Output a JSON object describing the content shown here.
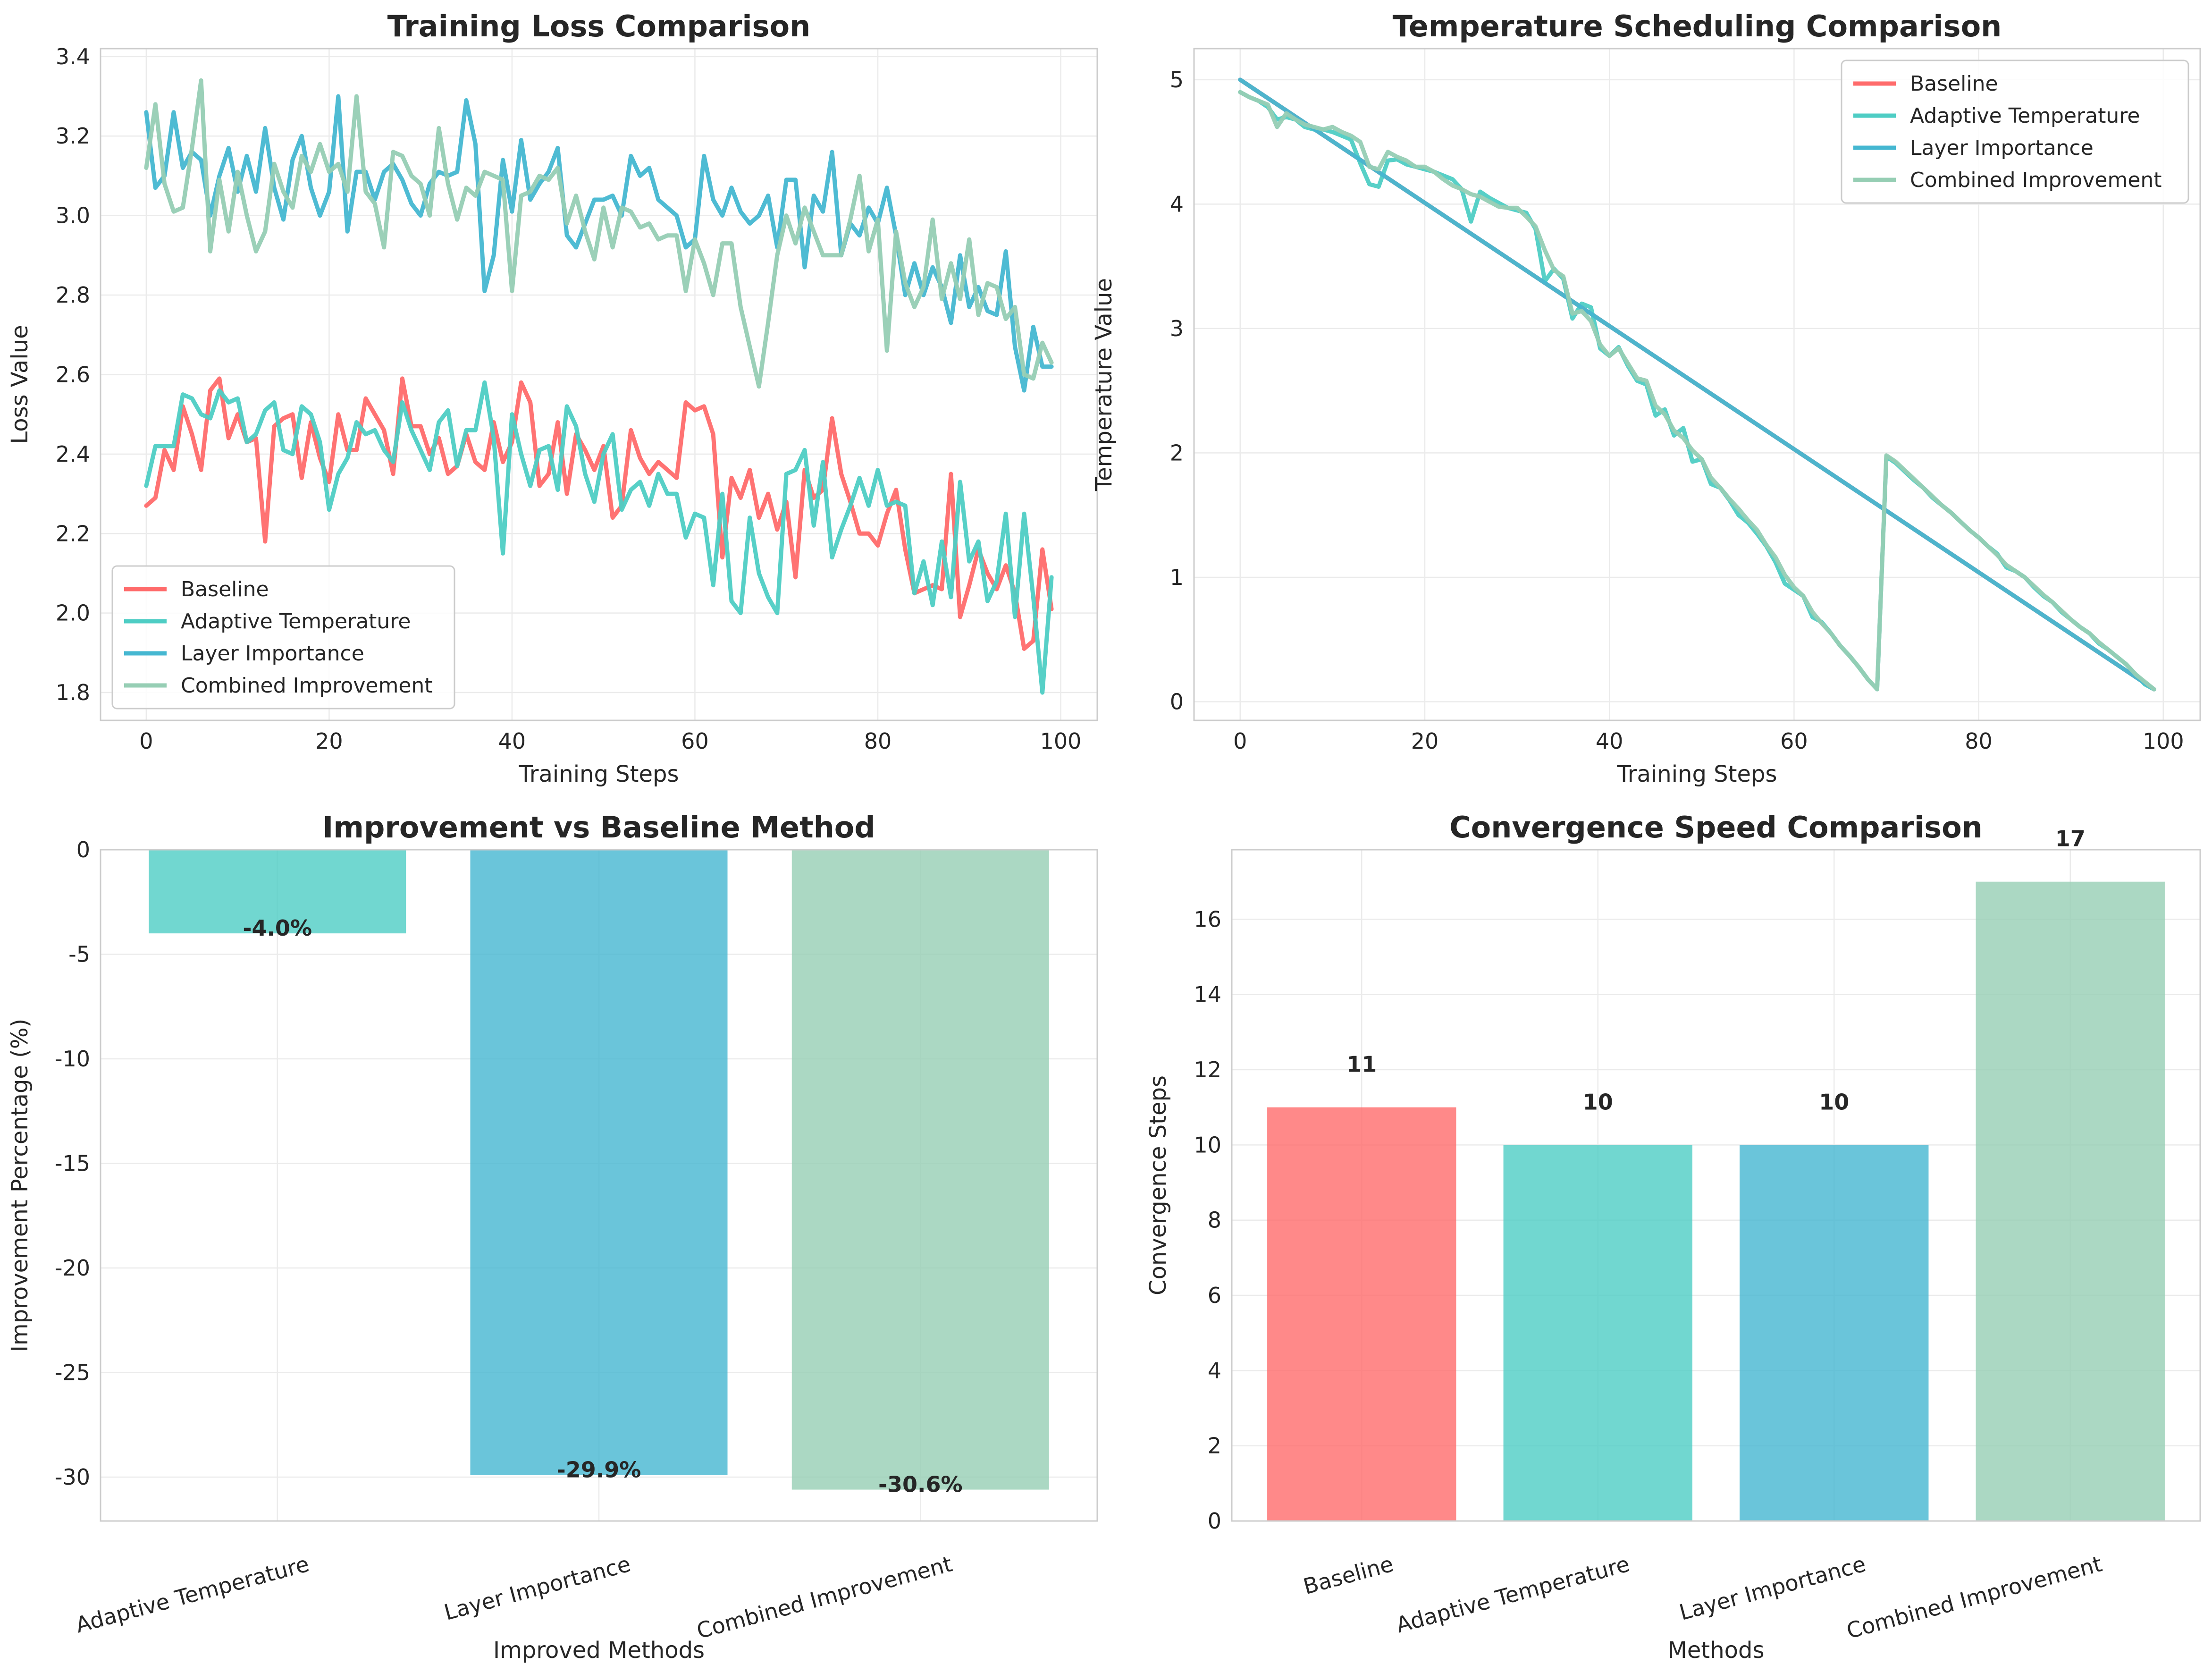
{
  "chart_data": [
    {
      "type": "line",
      "title": "Training Loss Comparison",
      "xlabel": "Training Steps",
      "ylabel": "Loss Value",
      "xlim": [
        -5,
        104
      ],
      "ylim": [
        1.73,
        3.42
      ],
      "xticks": [
        0,
        20,
        40,
        60,
        80,
        100
      ],
      "yticks": [
        1.8,
        2.0,
        2.2,
        2.4,
        2.6,
        2.8,
        3.0,
        3.2,
        3.4
      ],
      "grid": true,
      "legend_position": "lower-left",
      "x": [
        0,
        1,
        2,
        3,
        4,
        5,
        6,
        7,
        8,
        9,
        10,
        11,
        12,
        13,
        14,
        15,
        16,
        17,
        18,
        19,
        20,
        21,
        22,
        23,
        24,
        25,
        26,
        27,
        28,
        29,
        30,
        31,
        32,
        33,
        34,
        35,
        36,
        37,
        38,
        39,
        40,
        41,
        42,
        43,
        44,
        45,
        46,
        47,
        48,
        49,
        50,
        51,
        52,
        53,
        54,
        55,
        56,
        57,
        58,
        59,
        60,
        61,
        62,
        63,
        64,
        65,
        66,
        67,
        68,
        69,
        70,
        71,
        72,
        73,
        74,
        75,
        76,
        77,
        78,
        79,
        80,
        81,
        82,
        83,
        84,
        85,
        86,
        87,
        88,
        89,
        90,
        91,
        92,
        93,
        94,
        95,
        96,
        97,
        98,
        99
      ],
      "series": [
        {
          "name": "Baseline",
          "color": "#ff6b6b",
          "values": [
            2.27,
            2.29,
            2.41,
            2.36,
            2.52,
            2.45,
            2.36,
            2.56,
            2.59,
            2.44,
            2.5,
            2.43,
            2.44,
            2.18,
            2.47,
            2.49,
            2.5,
            2.34,
            2.48,
            2.39,
            2.33,
            2.5,
            2.41,
            2.41,
            2.54,
            2.5,
            2.46,
            2.35,
            2.59,
            2.47,
            2.47,
            2.4,
            2.44,
            2.35,
            2.37,
            2.45,
            2.38,
            2.36,
            2.48,
            2.38,
            2.43,
            2.58,
            2.53,
            2.32,
            2.35,
            2.48,
            2.3,
            2.45,
            2.41,
            2.36,
            2.42,
            2.24,
            2.27,
            2.46,
            2.39,
            2.35,
            2.38,
            2.36,
            2.34,
            2.53,
            2.51,
            2.52,
            2.45,
            2.14,
            2.34,
            2.29,
            2.36,
            2.24,
            2.3,
            2.21,
            2.28,
            2.09,
            2.36,
            2.29,
            2.31,
            2.49,
            2.35,
            2.28,
            2.2,
            2.2,
            2.17,
            2.25,
            2.31,
            2.16,
            2.05,
            2.06,
            2.07,
            2.06,
            2.35,
            1.99,
            2.07,
            2.16,
            2.1,
            2.06,
            2.12,
            2.05,
            1.91,
            1.93,
            2.16,
            2.01
          ]
        },
        {
          "name": "Adaptive Temperature",
          "color": "#4ecdc4",
          "values": [
            2.32,
            2.42,
            2.42,
            2.42,
            2.55,
            2.54,
            2.5,
            2.49,
            2.56,
            2.53,
            2.54,
            2.43,
            2.45,
            2.51,
            2.53,
            2.41,
            2.4,
            2.52,
            2.5,
            2.43,
            2.26,
            2.35,
            2.39,
            2.48,
            2.45,
            2.46,
            2.41,
            2.38,
            2.53,
            2.46,
            2.41,
            2.36,
            2.48,
            2.51,
            2.37,
            2.46,
            2.46,
            2.58,
            2.44,
            2.15,
            2.5,
            2.4,
            2.32,
            2.41,
            2.42,
            2.31,
            2.52,
            2.47,
            2.35,
            2.28,
            2.4,
            2.45,
            2.26,
            2.31,
            2.33,
            2.27,
            2.35,
            2.3,
            2.3,
            2.19,
            2.25,
            2.24,
            2.07,
            2.3,
            2.03,
            2.0,
            2.24,
            2.1,
            2.04,
            2.0,
            2.35,
            2.36,
            2.41,
            2.22,
            2.38,
            2.14,
            2.21,
            2.27,
            2.34,
            2.27,
            2.36,
            2.27,
            2.28,
            2.27,
            2.05,
            2.13,
            2.02,
            2.18,
            2.04,
            2.33,
            2.13,
            2.18,
            2.03,
            2.08,
            2.25,
            1.99,
            2.25,
            2.04,
            1.8,
            2.09
          ]
        },
        {
          "name": "Layer Importance",
          "color": "#45b7d1",
          "values": [
            3.26,
            3.07,
            3.1,
            3.26,
            3.12,
            3.16,
            3.14,
            3.0,
            3.1,
            3.17,
            3.06,
            3.15,
            3.06,
            3.22,
            3.07,
            2.99,
            3.14,
            3.2,
            3.07,
            3.0,
            3.06,
            3.3,
            2.96,
            3.11,
            3.11,
            3.04,
            3.11,
            3.13,
            3.09,
            3.03,
            3.0,
            3.08,
            3.11,
            3.1,
            3.11,
            3.29,
            3.18,
            2.81,
            2.9,
            3.14,
            3.01,
            3.19,
            3.04,
            3.08,
            3.11,
            3.17,
            2.95,
            2.92,
            2.98,
            3.04,
            3.04,
            3.05,
            3.0,
            3.15,
            3.1,
            3.12,
            3.04,
            3.02,
            3.0,
            2.92,
            2.94,
            3.15,
            3.04,
            3.0,
            3.07,
            3.01,
            2.98,
            3.0,
            3.05,
            2.92,
            3.09,
            3.09,
            2.87,
            3.05,
            3.01,
            3.16,
            2.9,
            2.98,
            2.95,
            3.02,
            2.98,
            3.07,
            2.95,
            2.8,
            2.88,
            2.8,
            2.87,
            2.82,
            2.73,
            2.9,
            2.77,
            2.82,
            2.76,
            2.75,
            2.91,
            2.67,
            2.56,
            2.72,
            2.62,
            2.62
          ]
        },
        {
          "name": "Combined Improvement",
          "color": "#96ceb4",
          "values": [
            3.12,
            3.28,
            3.08,
            3.01,
            3.02,
            3.17,
            3.34,
            2.91,
            3.09,
            2.96,
            3.11,
            3.0,
            2.91,
            2.96,
            3.13,
            3.06,
            3.02,
            3.15,
            3.11,
            3.18,
            3.11,
            3.13,
            3.06,
            3.3,
            3.06,
            3.03,
            2.92,
            3.16,
            3.15,
            3.1,
            3.08,
            3.0,
            3.22,
            3.08,
            2.99,
            3.07,
            3.05,
            3.11,
            3.1,
            3.09,
            2.81,
            3.05,
            3.06,
            3.1,
            3.09,
            3.12,
            2.98,
            3.05,
            2.96,
            2.89,
            3.02,
            2.92,
            3.02,
            3.01,
            2.97,
            2.98,
            2.94,
            2.95,
            2.95,
            2.81,
            2.94,
            2.88,
            2.8,
            2.93,
            2.93,
            2.77,
            2.67,
            2.57,
            2.73,
            2.9,
            3.0,
            2.93,
            3.02,
            2.96,
            2.9,
            2.9,
            2.9,
            2.99,
            3.1,
            2.91,
            2.99,
            2.66,
            2.96,
            2.83,
            2.77,
            2.82,
            2.99,
            2.79,
            2.88,
            2.79,
            2.94,
            2.75,
            2.83,
            2.82,
            2.74,
            2.77,
            2.6,
            2.59,
            2.68,
            2.63
          ]
        }
      ]
    },
    {
      "type": "line",
      "title": "Temperature Scheduling Comparison",
      "xlabel": "Training Steps",
      "ylabel": "Temperature Value",
      "xlim": [
        -5,
        104
      ],
      "ylim": [
        -0.15,
        5.25
      ],
      "xticks": [
        0,
        20,
        40,
        60,
        80,
        100
      ],
      "yticks": [
        0,
        1,
        2,
        3,
        4,
        5
      ],
      "grid": true,
      "legend_position": "top-right",
      "series": [
        {
          "name": "Baseline",
          "color": "#ff6b6b",
          "x": [
            0,
            99
          ],
          "values": [
            5.0,
            0.1
          ]
        },
        {
          "name": "Adaptive Temperature",
          "color": "#4ecdc4",
          "x": [
            0,
            1,
            2,
            3,
            4,
            5,
            6,
            7,
            8,
            9,
            10,
            11,
            12,
            13,
            14,
            15,
            16,
            17,
            18,
            19,
            20,
            21,
            22,
            23,
            24,
            25,
            26,
            27,
            28,
            29,
            30,
            31,
            32,
            33,
            34,
            35,
            36,
            37,
            38,
            39,
            40,
            41,
            42,
            43,
            44,
            45,
            46,
            47,
            48,
            49,
            50,
            51,
            52,
            53,
            54,
            55,
            56,
            57,
            58,
            59,
            60,
            61,
            62,
            63,
            64,
            65,
            66,
            67,
            68,
            69,
            70,
            71,
            72,
            73,
            74,
            75,
            76,
            77,
            78,
            79,
            80,
            81,
            82,
            83,
            84,
            85,
            86,
            87,
            88,
            89,
            90,
            91,
            92,
            93,
            94,
            95,
            96,
            97,
            98,
            99
          ],
          "values": [
            4.9,
            4.86,
            4.83,
            4.78,
            4.68,
            4.7,
            4.68,
            4.62,
            4.6,
            4.6,
            4.58,
            4.55,
            4.52,
            4.33,
            4.16,
            4.14,
            4.35,
            4.36,
            4.32,
            4.3,
            4.28,
            4.26,
            4.23,
            4.2,
            4.12,
            3.86,
            4.1,
            4.05,
            4.01,
            3.97,
            3.95,
            3.93,
            3.8,
            3.38,
            3.48,
            3.4,
            3.08,
            3.2,
            3.17,
            2.84,
            2.78,
            2.85,
            2.7,
            2.58,
            2.55,
            2.3,
            2.35,
            2.14,
            2.2,
            1.93,
            1.95,
            1.75,
            1.72,
            1.62,
            1.5,
            1.44,
            1.35,
            1.25,
            1.12,
            0.95,
            0.9,
            0.85,
            0.68,
            0.64,
            0.55,
            0.45,
            0.37,
            0.28,
            0.18,
            0.1,
            1.97,
            1.92,
            1.85,
            1.78,
            1.72,
            1.64,
            1.58,
            1.52,
            1.45,
            1.38,
            1.32,
            1.25,
            1.19,
            1.08,
            1.05,
            1.0,
            0.92,
            0.85,
            0.8,
            0.72,
            0.66,
            0.6,
            0.55,
            0.47,
            0.42,
            0.36,
            0.3,
            0.22,
            0.14,
            0.1
          ]
        },
        {
          "name": "Layer Importance",
          "color": "#45b7d1",
          "x": [
            0,
            99
          ],
          "values": [
            5.0,
            0.1
          ]
        },
        {
          "name": "Combined Improvement",
          "color": "#96ceb4",
          "x": [
            0,
            1,
            2,
            3,
            4,
            5,
            6,
            7,
            8,
            9,
            10,
            11,
            12,
            13,
            14,
            15,
            16,
            17,
            18,
            19,
            20,
            21,
            22,
            23,
            24,
            25,
            26,
            27,
            28,
            29,
            30,
            31,
            32,
            33,
            34,
            35,
            36,
            37,
            38,
            39,
            40,
            41,
            42,
            43,
            44,
            45,
            46,
            47,
            48,
            49,
            50,
            51,
            52,
            53,
            54,
            55,
            56,
            57,
            58,
            59,
            60,
            61,
            62,
            63,
            64,
            65,
            66,
            67,
            68,
            69,
            70,
            71,
            72,
            73,
            74,
            75,
            76,
            77,
            78,
            79,
            80,
            81,
            82,
            83,
            84,
            85,
            86,
            87,
            88,
            89,
            90,
            91,
            92,
            93,
            94,
            95,
            96,
            97,
            98,
            99
          ],
          "values": [
            4.9,
            4.86,
            4.83,
            4.8,
            4.62,
            4.73,
            4.68,
            4.64,
            4.62,
            4.6,
            4.62,
            4.58,
            4.55,
            4.5,
            4.3,
            4.28,
            4.42,
            4.38,
            4.35,
            4.3,
            4.3,
            4.26,
            4.2,
            4.15,
            4.12,
            4.08,
            4.06,
            4.02,
            3.98,
            3.97,
            3.97,
            3.9,
            3.82,
            3.63,
            3.47,
            3.42,
            3.12,
            3.14,
            3.06,
            2.87,
            2.78,
            2.84,
            2.72,
            2.6,
            2.58,
            2.38,
            2.31,
            2.18,
            2.12,
            2.02,
            1.95,
            1.8,
            1.72,
            1.63,
            1.55,
            1.46,
            1.38,
            1.26,
            1.16,
            1.02,
            0.92,
            0.85,
            0.72,
            0.63,
            0.55,
            0.45,
            0.37,
            0.28,
            0.18,
            0.1,
            1.98,
            1.93,
            1.86,
            1.79,
            1.72,
            1.65,
            1.58,
            1.52,
            1.45,
            1.38,
            1.32,
            1.25,
            1.18,
            1.1,
            1.05,
            1.0,
            0.93,
            0.86,
            0.8,
            0.73,
            0.66,
            0.6,
            0.55,
            0.48,
            0.42,
            0.36,
            0.3,
            0.22,
            0.16,
            0.1
          ]
        }
      ]
    },
    {
      "type": "bar",
      "title": "Improvement vs Baseline Method",
      "xlabel": "Improved Methods",
      "ylabel": "Improvement Percentage (%)",
      "categories": [
        "Adaptive Temperature",
        "Layer Importance",
        "Combined Improvement"
      ],
      "values": [
        -4.0,
        -29.9,
        -30.6
      ],
      "value_labels": [
        "-4.0%",
        "-29.9%",
        "-30.6%"
      ],
      "colors": [
        "#4ecdc4",
        "#45b7d1",
        "#96ceb4"
      ],
      "ylim": [
        -32.1,
        0
      ],
      "yticks": [
        0,
        -5,
        -10,
        -15,
        -20,
        -25,
        -30
      ],
      "grid": true
    },
    {
      "type": "bar",
      "title": "Convergence Speed Comparison",
      "xlabel": "Methods",
      "ylabel": "Convergence Steps",
      "categories": [
        "Baseline",
        "Adaptive Temperature",
        "Layer Importance",
        "Combined Improvement"
      ],
      "values": [
        11,
        10,
        10,
        17
      ],
      "value_labels": [
        "11",
        "10",
        "10",
        "17"
      ],
      "colors": [
        "#ff6b6b",
        "#4ecdc4",
        "#45b7d1",
        "#96ceb4"
      ],
      "ylim": [
        0,
        17.85
      ],
      "yticks": [
        0,
        2,
        4,
        6,
        8,
        10,
        12,
        14,
        16
      ],
      "grid": true
    }
  ]
}
